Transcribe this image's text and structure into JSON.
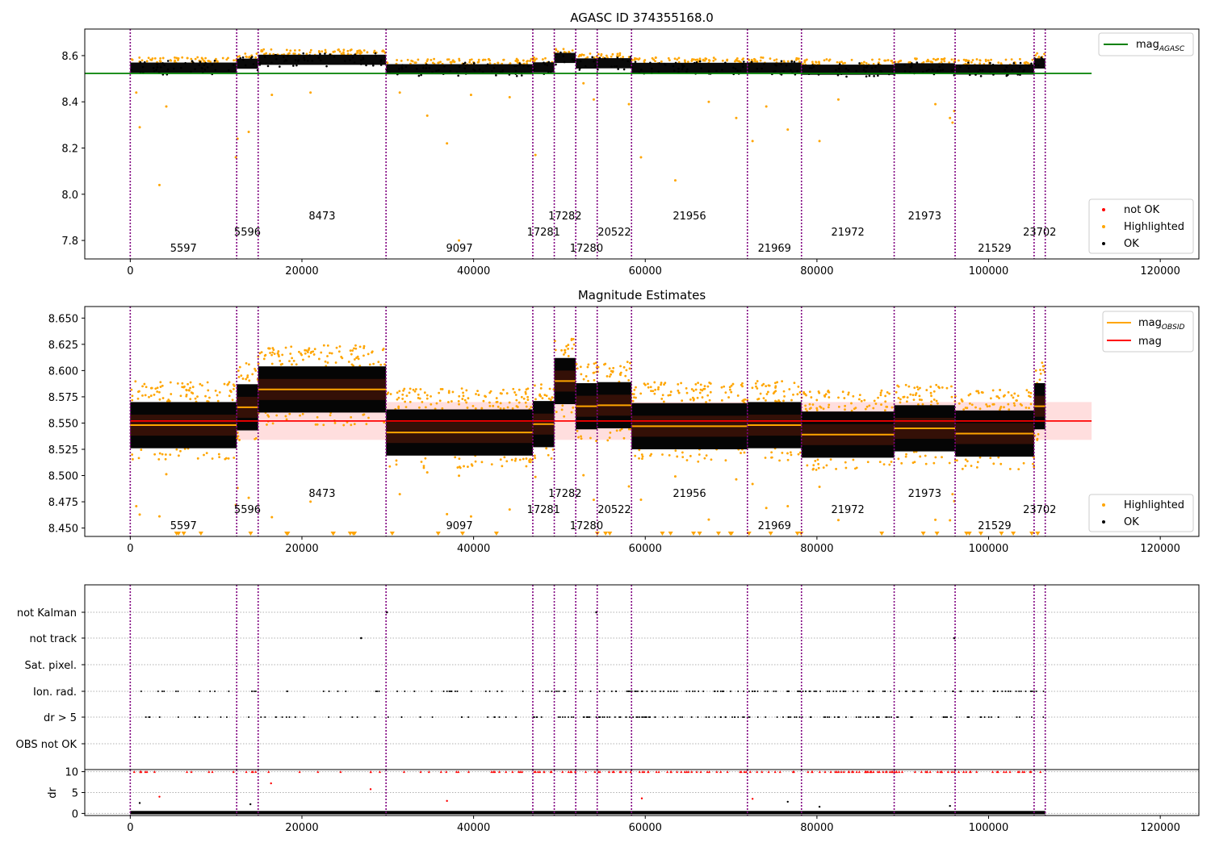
{
  "chart_data": [
    {
      "type": "scatter",
      "title": "AGASC ID 374355168.0",
      "xlim": [
        -5300,
        124500
      ],
      "ylim": [
        7.72,
        8.715
      ],
      "xticks": [
        0,
        20000,
        40000,
        60000,
        80000,
        100000,
        120000
      ],
      "yticks": [
        7.8,
        8.0,
        8.2,
        8.4,
        8.6
      ],
      "ytick_labels": [
        "7.8",
        "8.0",
        "8.2",
        "8.4",
        "8.6"
      ],
      "agasc_mag": 8.523,
      "legend_top": [
        {
          "label": "mag",
          "sub": "AGASC",
          "color": "#008000"
        }
      ],
      "legend_bottom": [
        {
          "label": "not OK",
          "color": "#ff0000"
        },
        {
          "label": "Highlighted",
          "color": "#ffa500"
        },
        {
          "label": "OK",
          "color": "#000000"
        }
      ],
      "segments": [
        {
          "obsid": "5597",
          "x0": 0,
          "x1": 12400,
          "mean": 8.548,
          "label_row": 2
        },
        {
          "obsid": "5596",
          "x0": 12400,
          "x1": 14900,
          "mean": 8.565,
          "label_row": 1
        },
        {
          "obsid": "8473",
          "x0": 14900,
          "x1": 29800,
          "mean": 8.582,
          "label_row": 0
        },
        {
          "obsid": "9097",
          "x0": 29800,
          "x1": 46900,
          "mean": 8.541,
          "label_row": 2
        },
        {
          "obsid": "17281",
          "x0": 46900,
          "x1": 49400,
          "mean": 8.549,
          "label_row": 1
        },
        {
          "obsid": "17282",
          "x0": 49400,
          "x1": 51900,
          "mean": 8.59,
          "label_row": 0
        },
        {
          "obsid": "17280",
          "x0": 51900,
          "x1": 54400,
          "mean": 8.566,
          "label_row": 2
        },
        {
          "obsid": "20522",
          "x0": 54400,
          "x1": 58400,
          "mean": 8.567,
          "label_row": 1
        },
        {
          "obsid": "21956",
          "x0": 58400,
          "x1": 71900,
          "mean": 8.547,
          "label_row": 0
        },
        {
          "obsid": "21969",
          "x0": 71900,
          "x1": 78200,
          "mean": 8.548,
          "label_row": 2
        },
        {
          "obsid": "21972",
          "x0": 78200,
          "x1": 89000,
          "mean": 8.539,
          "label_row": 1
        },
        {
          "obsid": "21973",
          "x0": 89000,
          "x1": 96100,
          "mean": 8.545,
          "label_row": 0
        },
        {
          "obsid": "21529",
          "x0": 96100,
          "x1": 105300,
          "mean": 8.54,
          "label_row": 2
        },
        {
          "obsid": "23702",
          "x0": 105300,
          "x1": 106600,
          "mean": 8.566,
          "label_row": 1
        }
      ],
      "obsid_boundaries": [
        0,
        12400,
        14900,
        29800,
        46900,
        49400,
        51900,
        54400,
        58400,
        71900,
        78200,
        89000,
        96100,
        105300,
        106600
      ],
      "outlier_points": [
        [
          700,
          8.44
        ],
        [
          1100,
          8.29
        ],
        [
          3400,
          8.04
        ],
        [
          4200,
          8.38
        ],
        [
          12300,
          8.16
        ],
        [
          12500,
          8.24
        ],
        [
          13800,
          8.27
        ],
        [
          16500,
          8.43
        ],
        [
          21000,
          8.44
        ],
        [
          31400,
          8.44
        ],
        [
          34600,
          8.34
        ],
        [
          36900,
          8.22
        ],
        [
          38300,
          7.8
        ],
        [
          39700,
          8.43
        ],
        [
          44200,
          8.42
        ],
        [
          47200,
          8.17
        ],
        [
          52800,
          8.48
        ],
        [
          54000,
          8.41
        ],
        [
          58100,
          8.39
        ],
        [
          59500,
          8.16
        ],
        [
          63500,
          8.06
        ],
        [
          67400,
          8.4
        ],
        [
          70600,
          8.33
        ],
        [
          72500,
          8.23
        ],
        [
          74100,
          8.38
        ],
        [
          76600,
          8.28
        ],
        [
          80300,
          8.23
        ],
        [
          82500,
          8.41
        ],
        [
          93800,
          8.39
        ],
        [
          95500,
          8.33
        ],
        [
          95800,
          8.31
        ],
        [
          96000,
          8.36
        ]
      ]
    },
    {
      "type": "scatter",
      "title": "Magnitude Estimates",
      "xlim": [
        -5300,
        124500
      ],
      "ylim": [
        8.442,
        8.661
      ],
      "xticks": [
        0,
        20000,
        40000,
        60000,
        80000,
        100000,
        120000
      ],
      "yticks": [
        8.45,
        8.475,
        8.5,
        8.525,
        8.55,
        8.575,
        8.6,
        8.625,
        8.65
      ],
      "ytick_labels": [
        "8.450",
        "8.475",
        "8.500",
        "8.525",
        "8.550",
        "8.575",
        "8.600",
        "8.625",
        "8.650"
      ],
      "mag": 8.552,
      "mag_band": [
        8.534,
        8.57
      ],
      "legend_top": [
        {
          "label": "mag",
          "sub": "OBSID",
          "color": "#ffa500"
        },
        {
          "label": "mag",
          "sub": "",
          "color": "#ff0000"
        }
      ],
      "legend_bottom": [
        {
          "label": "Highlighted",
          "color": "#ffa500"
        },
        {
          "label": "OK",
          "color": "#000000"
        }
      ]
    },
    {
      "type": "scatter",
      "title": "",
      "xlim": [
        -5300,
        124500
      ],
      "xticks": [
        0,
        20000,
        40000,
        60000,
        80000,
        100000,
        120000
      ],
      "flag_rows": [
        "not Kalman",
        "not track",
        "Sat. pixel.",
        "Ion. rad.",
        "dr > 5",
        "OBS not OK"
      ],
      "dr_ylabel": "dr",
      "dr_ylim": [
        -0.5,
        10.5
      ],
      "dr_yticks": [
        0,
        5,
        10
      ],
      "dr_ytick_labels": [
        "0",
        "5",
        "10"
      ],
      "flag_points": [
        {
          "row": "not track",
          "x": [
            26900,
            96000
          ]
        },
        {
          "row": "not Kalman",
          "x": [
            29900,
            54300
          ]
        }
      ]
    }
  ],
  "tick_format": {
    "x": [
      "0",
      "20000",
      "40000",
      "60000",
      "80000",
      "100000",
      "120000"
    ]
  }
}
